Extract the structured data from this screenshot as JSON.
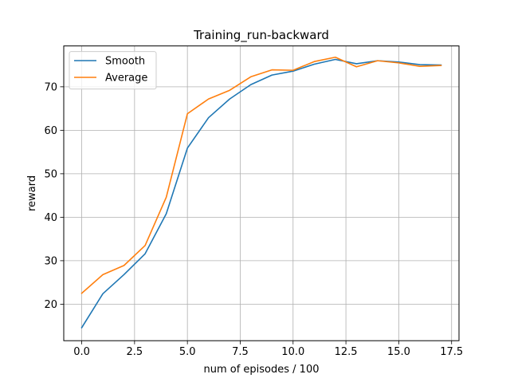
{
  "chart_data": {
    "type": "line",
    "title": "Training_run-backward",
    "xlabel": "num of episodes / 100",
    "ylabel": "reward",
    "x": [
      0,
      1,
      2,
      3,
      4,
      5,
      6,
      7,
      8,
      9,
      10,
      11,
      12,
      13,
      14,
      15,
      16,
      17
    ],
    "xlim": [
      -0.85,
      17.85
    ],
    "ylim": [
      11.6,
      79.4
    ],
    "xticks": [
      0.0,
      2.5,
      5.0,
      7.5,
      10.0,
      12.5,
      15.0,
      17.5
    ],
    "xtick_labels": [
      "0.0",
      "2.5",
      "5.0",
      "7.5",
      "10.0",
      "12.5",
      "15.0",
      "17.5"
    ],
    "yticks": [
      20,
      30,
      40,
      50,
      60,
      70
    ],
    "ytick_labels": [
      "20",
      "30",
      "40",
      "50",
      "60",
      "70"
    ],
    "grid": true,
    "legend_position": "upper-left",
    "series": [
      {
        "name": "Smooth",
        "color": "#1f77b4",
        "values": [
          14.6,
          22.4,
          26.8,
          31.6,
          40.8,
          55.9,
          62.9,
          67.2,
          70.5,
          72.7,
          73.6,
          75.2,
          76.3,
          75.3,
          76.0,
          75.7,
          75.1,
          75.0
        ]
      },
      {
        "name": "Average",
        "color": "#ff7f0e",
        "values": [
          22.5,
          26.8,
          28.9,
          33.5,
          44.6,
          63.8,
          67.2,
          69.2,
          72.3,
          73.9,
          73.8,
          75.8,
          76.8,
          74.6,
          76.0,
          75.5,
          74.7,
          74.9
        ]
      }
    ]
  }
}
